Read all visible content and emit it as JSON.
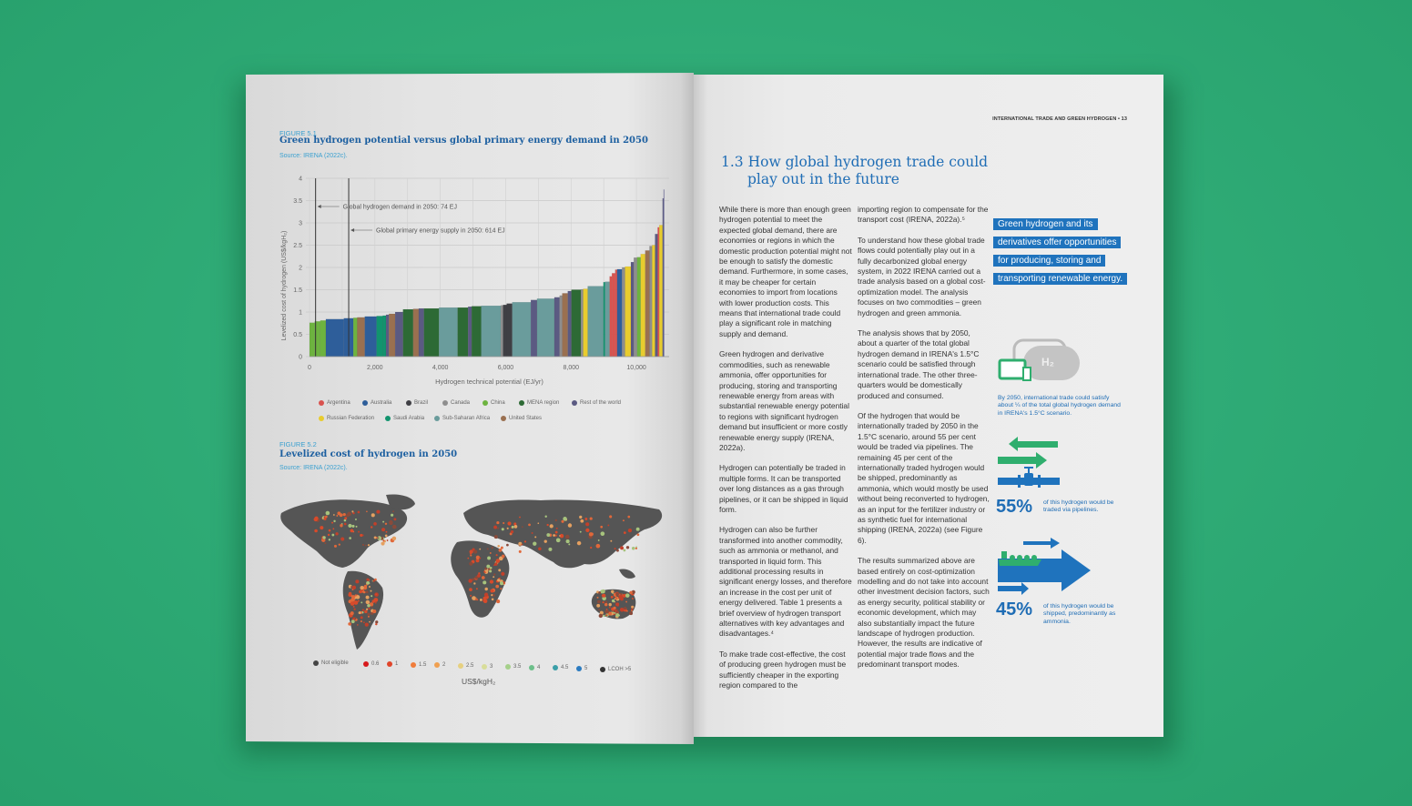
{
  "left_page": {
    "figure1": {
      "number": "FIGURE 5.1",
      "title": "Green hydrogen potential versus global primary energy demand in 2050",
      "source": "Source: IRENA (2022c)."
    },
    "figure2": {
      "number": "FIGURE 5.2",
      "title": "Levelized cost of hydrogen in 2050",
      "source": "Source: IRENA (2022c).",
      "legend": [
        {
          "label": "Not eligible",
          "color": "#444444"
        },
        {
          "label": "0.6",
          "color": "#d7191c"
        },
        {
          "label": "1",
          "color": "#e0452a"
        },
        {
          "label": "1.5",
          "color": "#f07c3a"
        },
        {
          "label": "2",
          "color": "#f0a050"
        },
        {
          "label": "2.5",
          "color": "#e6d080"
        },
        {
          "label": "3",
          "color": "#d8dd9a"
        },
        {
          "label": "3.5",
          "color": "#a5d08a"
        },
        {
          "label": "4",
          "color": "#6cbf8a"
        },
        {
          "label": "4.5",
          "color": "#3a9fa8"
        },
        {
          "label": "5",
          "color": "#2b7bc0"
        },
        {
          "label": "LCOH >5",
          "color": "#333333"
        }
      ],
      "unit": "US$/kgH₂"
    }
  },
  "chart_data": {
    "type": "bar",
    "title": "Green hydrogen potential versus global primary energy demand in 2050",
    "xlabel": "Hydrogen technical potential (EJ/yr)",
    "ylabel": "Levelized cost of hydrogen (US$/kgH₂)",
    "xlim": [
      0,
      11000
    ],
    "ylim": [
      0,
      4
    ],
    "xticks": [
      "0",
      "2,000",
      "4,000",
      "6,000",
      "8,000",
      "10,000"
    ],
    "xtick_values": [
      0,
      2000,
      4000,
      6000,
      8000,
      10000
    ],
    "yticks": [
      "0",
      "0.5",
      "1",
      "1.5",
      "2",
      "2.5",
      "3",
      "3.5",
      "4"
    ],
    "ytick_values": [
      0,
      0.5,
      1,
      1.5,
      2,
      2.5,
      3,
      3.5,
      4
    ],
    "grid": true,
    "annotations": [
      {
        "label": "Global hydrogen demand in 2050: 74 EJ",
        "x": 74
      },
      {
        "label": "Global primary energy supply in 2050: 614 EJ",
        "x": 614
      }
    ],
    "legend_position": "bottom",
    "regions": [
      {
        "name": "Argentina",
        "color": "#d9534f"
      },
      {
        "name": "Australia",
        "color": "#2e5e9a"
      },
      {
        "name": "Brazil",
        "color": "#3f3f44"
      },
      {
        "name": "Canada",
        "color": "#8e8e8e"
      },
      {
        "name": "China",
        "color": "#6db33f"
      },
      {
        "name": "MENA region",
        "color": "#2d6a35"
      },
      {
        "name": "Rest of the world",
        "color": "#5b5a82"
      },
      {
        "name": "Russian Federation",
        "color": "#e8cc2e"
      },
      {
        "name": "Saudi Arabia",
        "color": "#12946e"
      },
      {
        "name": "Sub-Saharan Africa",
        "color": "#6a9c9c"
      },
      {
        "name": "United States",
        "color": "#9a7050"
      }
    ],
    "bar_columns": [
      "potential_end_EJ",
      "lcoh",
      "region"
    ],
    "bars": [
      [
        160,
        0.76,
        "China"
      ],
      [
        330,
        0.79,
        "China"
      ],
      [
        500,
        0.81,
        "China"
      ],
      [
        1050,
        0.84,
        "Australia"
      ],
      [
        1340,
        0.86,
        "Australia"
      ],
      [
        1460,
        0.87,
        "China"
      ],
      [
        1690,
        0.88,
        "United States"
      ],
      [
        2050,
        0.9,
        "Australia"
      ],
      [
        2240,
        0.91,
        "Saudi Arabia"
      ],
      [
        2340,
        0.92,
        "Saudi Arabia"
      ],
      [
        2430,
        0.94,
        "Rest of the world"
      ],
      [
        2620,
        0.96,
        "United States"
      ],
      [
        2860,
        1.0,
        "Rest of the world"
      ],
      [
        3170,
        1.06,
        "MENA region"
      ],
      [
        3340,
        1.07,
        "United States"
      ],
      [
        3500,
        1.08,
        "Rest of the world"
      ],
      [
        3960,
        1.08,
        "MENA region"
      ],
      [
        4530,
        1.1,
        "Sub-Saharan Africa"
      ],
      [
        4850,
        1.1,
        "MENA region"
      ],
      [
        4960,
        1.12,
        "Rest of the world"
      ],
      [
        5250,
        1.13,
        "MENA region"
      ],
      [
        5850,
        1.14,
        "Sub-Saharan Africa"
      ],
      [
        5920,
        1.15,
        "Canada"
      ],
      [
        6030,
        1.16,
        "Brazil"
      ],
      [
        6200,
        1.19,
        "Brazil"
      ],
      [
        6770,
        1.22,
        "Sub-Saharan Africa"
      ],
      [
        6960,
        1.27,
        "Rest of the world"
      ],
      [
        7490,
        1.3,
        "Sub-Saharan Africa"
      ],
      [
        7650,
        1.33,
        "Rest of the world"
      ],
      [
        7730,
        1.37,
        "Canada"
      ],
      [
        7900,
        1.42,
        "United States"
      ],
      [
        8010,
        1.47,
        "Rest of the world"
      ],
      [
        8300,
        1.5,
        "MENA region"
      ],
      [
        8370,
        1.51,
        "Canada"
      ],
      [
        8510,
        1.52,
        "Russian Federation"
      ],
      [
        8990,
        1.58,
        "Sub-Saharan Africa"
      ],
      [
        9040,
        1.67,
        "Saudi Arabia"
      ],
      [
        9180,
        1.68,
        "Sub-Saharan Africa"
      ],
      [
        9250,
        1.8,
        "Argentina"
      ],
      [
        9350,
        1.87,
        "Argentina"
      ],
      [
        9410,
        1.95,
        "Argentina"
      ],
      [
        9560,
        1.96,
        "Australia"
      ],
      [
        9650,
        2.0,
        "Canada"
      ],
      [
        9830,
        2.02,
        "Russian Federation"
      ],
      [
        9920,
        2.12,
        "Rest of the world"
      ],
      [
        10020,
        2.22,
        "Canada"
      ],
      [
        10130,
        2.23,
        "China"
      ],
      [
        10270,
        2.3,
        "Russian Federation"
      ],
      [
        10400,
        2.38,
        "United States"
      ],
      [
        10480,
        2.48,
        "Canada"
      ],
      [
        10570,
        2.5,
        "Russian Federation"
      ],
      [
        10650,
        2.75,
        "Rest of the world"
      ],
      [
        10700,
        2.9,
        "Argentina"
      ],
      [
        10800,
        2.95,
        "Russian Federation"
      ],
      [
        10840,
        3.55,
        "Rest of the world"
      ]
    ]
  },
  "right_page": {
    "running_header": "INTERNATIONAL TRADE AND GREEN HYDROGEN • 13",
    "heading_number": "1.3",
    "heading_line1": "How global hydrogen trade could",
    "heading_line2": "play out in the future",
    "col1": [
      "While there is more than enough green hydrogen potential to meet the expected global demand, there are economies or regions in which the domestic production potential might not be enough to satisfy the domestic demand. Furthermore, in some cases, it may be cheaper for certain economies to import from locations with lower production costs. This means that international trade could play a significant role in matching supply and demand.",
      "Green hydrogen and derivative commodities, such as renewable ammonia, offer opportunities for producing, storing and transporting renewable energy from areas with substantial renewable energy potential to regions with significant hydrogen demand but insufficient or more costly renewable energy supply (IRENA, 2022a).",
      "Hydrogen can potentially be traded in multiple forms. It can be transported over long distances as a gas through pipelines, or it can be shipped in liquid form.",
      "Hydrogen can also be further transformed into another commodity, such as ammonia or methanol, and transported in liquid form. This additional processing results in significant energy losses, and therefore an increase in the cost per unit of energy delivered. Table 1 presents a brief overview of hydrogen transport alternatives with key advantages and disadvantages.⁴",
      "To make trade cost-effective, the cost of producing green hydrogen must be sufficiently cheaper in the exporting region compared to the"
    ],
    "col2": [
      "importing region to compensate for the transport cost (IRENA, 2022a).⁵",
      "To understand how these global trade flows could potentially play out in a fully decarbonized global energy system, in 2022 IRENA carried out a trade analysis based on a global cost-optimization model. The analysis focuses on two commodities – green hydrogen and green ammonia.",
      "The analysis shows that by 2050, about a quarter of the total global hydrogen demand in IRENA's 1.5°C scenario could be satisfied through international trade. The other three-quarters would be domestically produced and consumed.",
      "Of the hydrogen that would be internationally traded by 2050 in the 1.5°C scenario, around 55 per cent would be traded via pipelines. The remaining 45 per cent of the internationally traded hydrogen would be shipped, predominantly as ammonia, which would mostly be used without being reconverted to hydrogen, as an input for the fertilizer industry or as synthetic fuel for international shipping (IRENA, 2022a) (see Figure 6).",
      "The results summarized above are based entirely on cost-optimization modelling and do not take into account other investment decision factors, such as energy security, political stability or economic development, which may also substantially impact the future landscape of hydrogen production. However, the results are indicative of potential major trade flows and the predominant transport modes."
    ],
    "pull_quote": [
      "Green hydrogen and its",
      "derivatives offer opportunities",
      "for producing, storing and",
      "transporting renewable energy."
    ],
    "tank_label": "H₂",
    "infographic_caption": "By 2050, international trade could satisfy about ¼ of the total global hydrogen demand in IRENA's 1.5°C scenario.",
    "stat1": {
      "value": "55%",
      "text": "of this hydrogen would be traded via pipelines."
    },
    "stat2": {
      "value": "45%",
      "text": "of this hydrogen would be shipped, predominantly as ammonia."
    },
    "colors": {
      "blue": "#1f73bd",
      "green": "#2fae6e",
      "background": "#2eaa75"
    }
  }
}
